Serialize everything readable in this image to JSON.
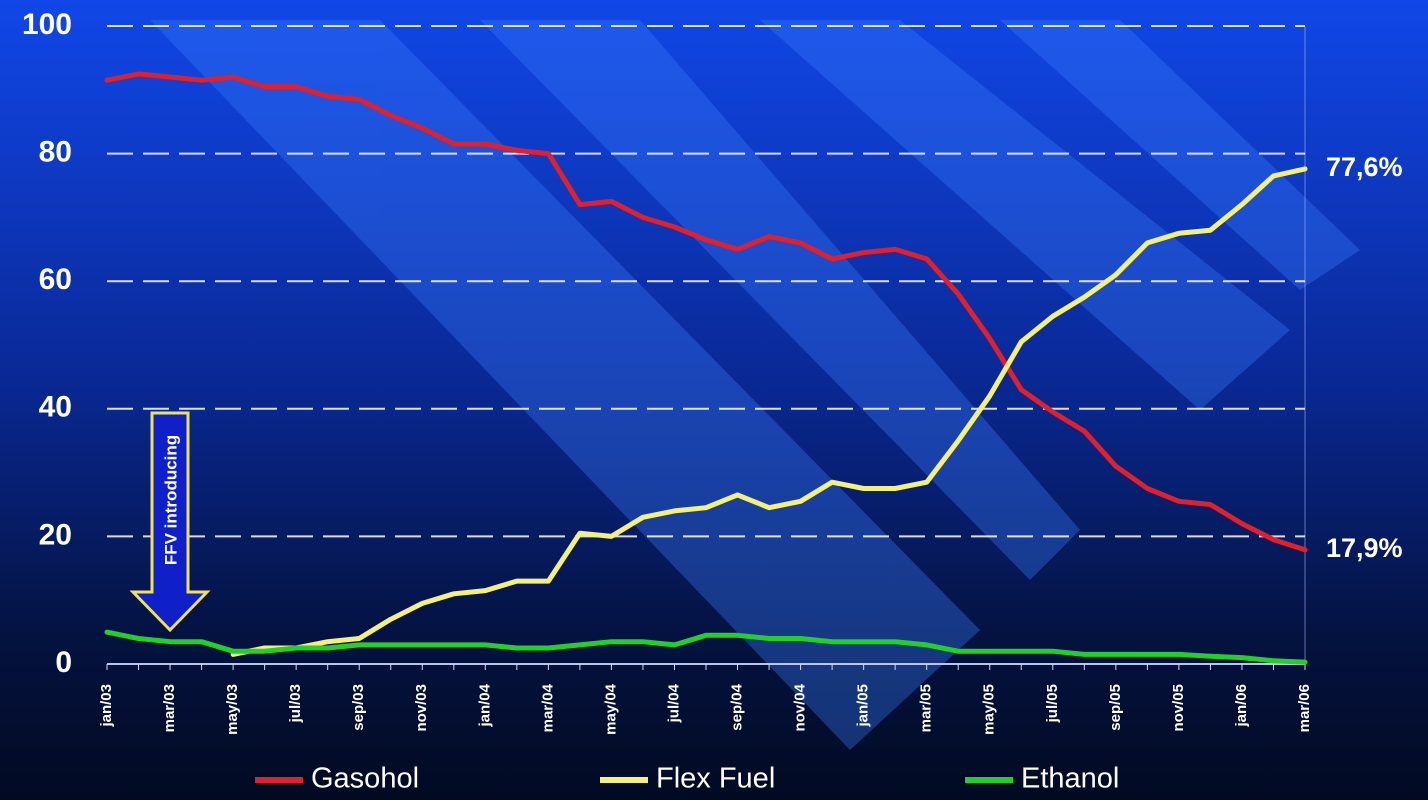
{
  "chart_data": {
    "type": "line",
    "categories": [
      "jan/03",
      null,
      "mar/03",
      null,
      "may/03",
      null,
      "jul/03",
      null,
      "sep/03",
      null,
      "nov/03",
      null,
      "jan/04",
      null,
      "mar/04",
      null,
      "may/04",
      null,
      "jul/04",
      null,
      "sep/04",
      null,
      "nov/04",
      null,
      "jan/05",
      null,
      "mar/05",
      null,
      "may/05",
      null,
      "jul/05",
      null,
      "sep/05",
      null,
      "nov/05",
      null,
      "jan/06",
      null,
      "mar/06"
    ],
    "series": [
      {
        "name": "Gasohol",
        "color": "#e0202a",
        "values": [
          91.5,
          92.5,
          92,
          91.5,
          92,
          90.5,
          90.5,
          89,
          88.5,
          86,
          84,
          81.5,
          81.5,
          80.5,
          80,
          72,
          72.5,
          70,
          68.5,
          66.5,
          65,
          67,
          66,
          63.5,
          64.5,
          65,
          63.5,
          58,
          51,
          43,
          39.5,
          36.5,
          31,
          27.5,
          25.5,
          25,
          22,
          19.5,
          17.9
        ],
        "value_labels": [
          null,
          null,
          null,
          null,
          null,
          null,
          null,
          null,
          null,
          null,
          null,
          null,
          null,
          null,
          null,
          null,
          null,
          null,
          null,
          null,
          null,
          null,
          null,
          null,
          null,
          null,
          null,
          null,
          null,
          null,
          null,
          null,
          null,
          null,
          null,
          null,
          null,
          null,
          "17,9%"
        ]
      },
      {
        "name": "Flex Fuel",
        "color": "#f4f07a",
        "values": [
          null,
          null,
          null,
          null,
          1.5,
          2.5,
          2.5,
          3.5,
          4,
          7,
          9.5,
          11,
          11.5,
          13,
          13,
          20.5,
          20,
          23,
          24,
          24.5,
          26.5,
          24.5,
          25.5,
          28.5,
          27.5,
          27.5,
          28.5,
          35,
          42,
          50.5,
          54.5,
          57.5,
          61,
          66,
          67.5,
          68,
          72,
          76.5,
          77.6
        ],
        "value_labels": [
          null,
          null,
          null,
          null,
          null,
          null,
          null,
          null,
          null,
          null,
          null,
          null,
          null,
          null,
          null,
          null,
          null,
          null,
          null,
          null,
          null,
          null,
          null,
          null,
          null,
          null,
          null,
          null,
          null,
          null,
          null,
          null,
          null,
          null,
          null,
          null,
          null,
          null,
          "77,6%"
        ]
      },
      {
        "name": "Ethanol",
        "color": "#22d02a",
        "values": [
          5,
          4,
          3.5,
          3.5,
          2,
          2,
          2.5,
          2.5,
          3,
          3,
          3,
          3,
          3,
          2.5,
          2.5,
          3,
          3.5,
          3.5,
          3,
          4.5,
          4.5,
          4,
          4,
          3.5,
          3.5,
          3.5,
          3,
          2,
          2,
          2,
          2,
          1.5,
          1.5,
          1.5,
          1.5,
          1.2,
          1,
          0.5,
          0.3
        ]
      }
    ],
    "ylim": [
      0,
      100
    ],
    "yticks": [
      0,
      20,
      40,
      60,
      80,
      100
    ],
    "grid": true,
    "annotation": "FFV introducing"
  }
}
